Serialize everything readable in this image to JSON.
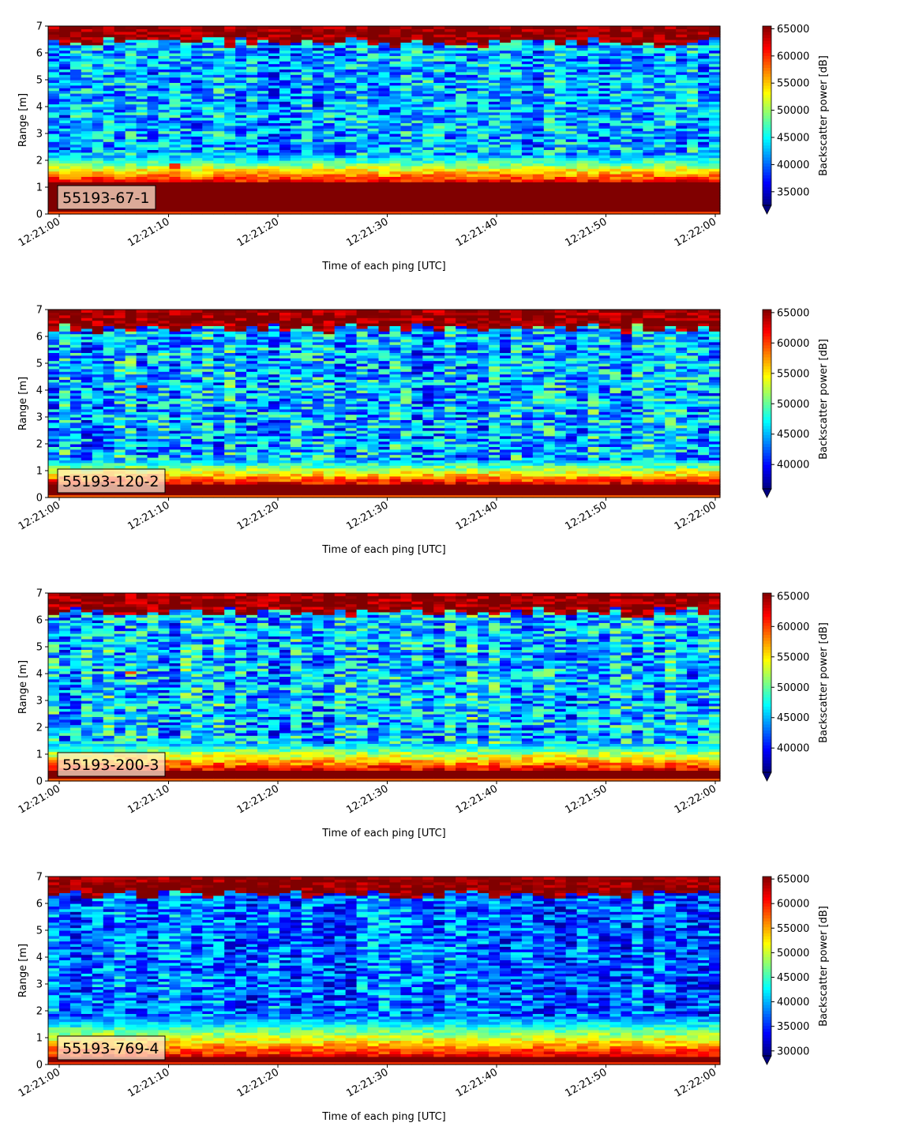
{
  "chart_data": [
    {
      "type": "heatmap",
      "label": "55193-67-1",
      "xlabel": "Time of each ping [UTC]",
      "ylabel": "Range [m]",
      "x_ticks": [
        "12:21:00",
        "12:21:10",
        "12:21:20",
        "12:21:30",
        "12:21:40",
        "12:21:50",
        "12:22:00"
      ],
      "x_range": [
        "12:21:00",
        "12:22:00"
      ],
      "y_ticks": [
        0,
        1,
        2,
        3,
        4,
        5,
        6,
        7
      ],
      "ylim": [
        0,
        7
      ],
      "colorbar": {
        "label": "Backscatter power [dB]",
        "ticks": [
          35000,
          40000,
          45000,
          50000,
          55000,
          60000,
          65000
        ],
        "range": [
          32500,
          65500
        ],
        "extend": "min",
        "colormap": "jet"
      },
      "profile": {
        "bottom_high_to": 1.2,
        "transition_to": 2.2,
        "noise_level": 42000,
        "top_band_from": 6.4,
        "extra_blip": [
          1.7,
          1.95,
          11
        ]
      },
      "grid": false
    },
    {
      "type": "heatmap",
      "label": "55193-120-2",
      "xlabel": "Time of each ping [UTC]",
      "ylabel": "Range [m]",
      "x_ticks": [
        "12:21:00",
        "12:21:10",
        "12:21:20",
        "12:21:30",
        "12:21:40",
        "12:21:50",
        "12:22:00"
      ],
      "x_range": [
        "12:21:00",
        "12:22:00"
      ],
      "y_ticks": [
        0,
        1,
        2,
        3,
        4,
        5,
        6,
        7
      ],
      "ylim": [
        0,
        7
      ],
      "colorbar": {
        "label": "Backscatter power [dB]",
        "ticks": [
          40000,
          45000,
          50000,
          55000,
          60000,
          65000
        ],
        "range": [
          36000,
          65500
        ],
        "extend": "min",
        "colormap": "jet"
      },
      "profile": {
        "bottom_high_to": 0.55,
        "transition_to": 1.4,
        "noise_level": 45000,
        "top_band_from": 6.3,
        "extra_blip": [
          4.1,
          4.2,
          8
        ]
      },
      "grid": false
    },
    {
      "type": "heatmap",
      "label": "55193-200-3",
      "xlabel": "Time of each ping [UTC]",
      "ylabel": "Range [m]",
      "x_ticks": [
        "12:21:00",
        "12:21:10",
        "12:21:20",
        "12:21:30",
        "12:21:40",
        "12:21:50",
        "12:22:00"
      ],
      "x_range": [
        "12:21:00",
        "12:22:00"
      ],
      "y_ticks": [
        0,
        1,
        2,
        3,
        4,
        5,
        6,
        7
      ],
      "ylim": [
        0,
        7
      ],
      "colorbar": {
        "label": "Backscatter power [dB]",
        "ticks": [
          40000,
          45000,
          50000,
          55000,
          60000,
          65000
        ],
        "range": [
          36000,
          65500
        ],
        "extend": "min",
        "colormap": "jet"
      },
      "profile": {
        "bottom_high_to": 0.45,
        "transition_to": 1.4,
        "noise_level": 45500,
        "top_band_from": 6.3,
        "extra_blip": [
          4.05,
          4.15,
          7
        ]
      },
      "grid": false
    },
    {
      "type": "heatmap",
      "label": "55193-769-4",
      "xlabel": "Time of each ping [UTC]",
      "ylabel": "Range [m]",
      "x_ticks": [
        "12:21:00",
        "12:21:10",
        "12:21:20",
        "12:21:30",
        "12:21:40",
        "12:21:50",
        "12:22:00"
      ],
      "x_range": [
        "12:21:00",
        "12:22:00"
      ],
      "y_ticks": [
        0,
        1,
        2,
        3,
        4,
        5,
        6,
        7
      ],
      "ylim": [
        0,
        7
      ],
      "colorbar": {
        "label": "Backscatter power [dB]",
        "ticks": [
          30000,
          35000,
          40000,
          45000,
          50000,
          55000,
          60000,
          65000
        ],
        "range": [
          29000,
          65500
        ],
        "extend": "min",
        "colormap": "jet"
      },
      "profile": {
        "bottom_high_to": 0.3,
        "transition_to": 1.8,
        "noise_level": 37500,
        "top_band_from": 6.35,
        "extra_blip": null
      },
      "grid": false
    }
  ]
}
